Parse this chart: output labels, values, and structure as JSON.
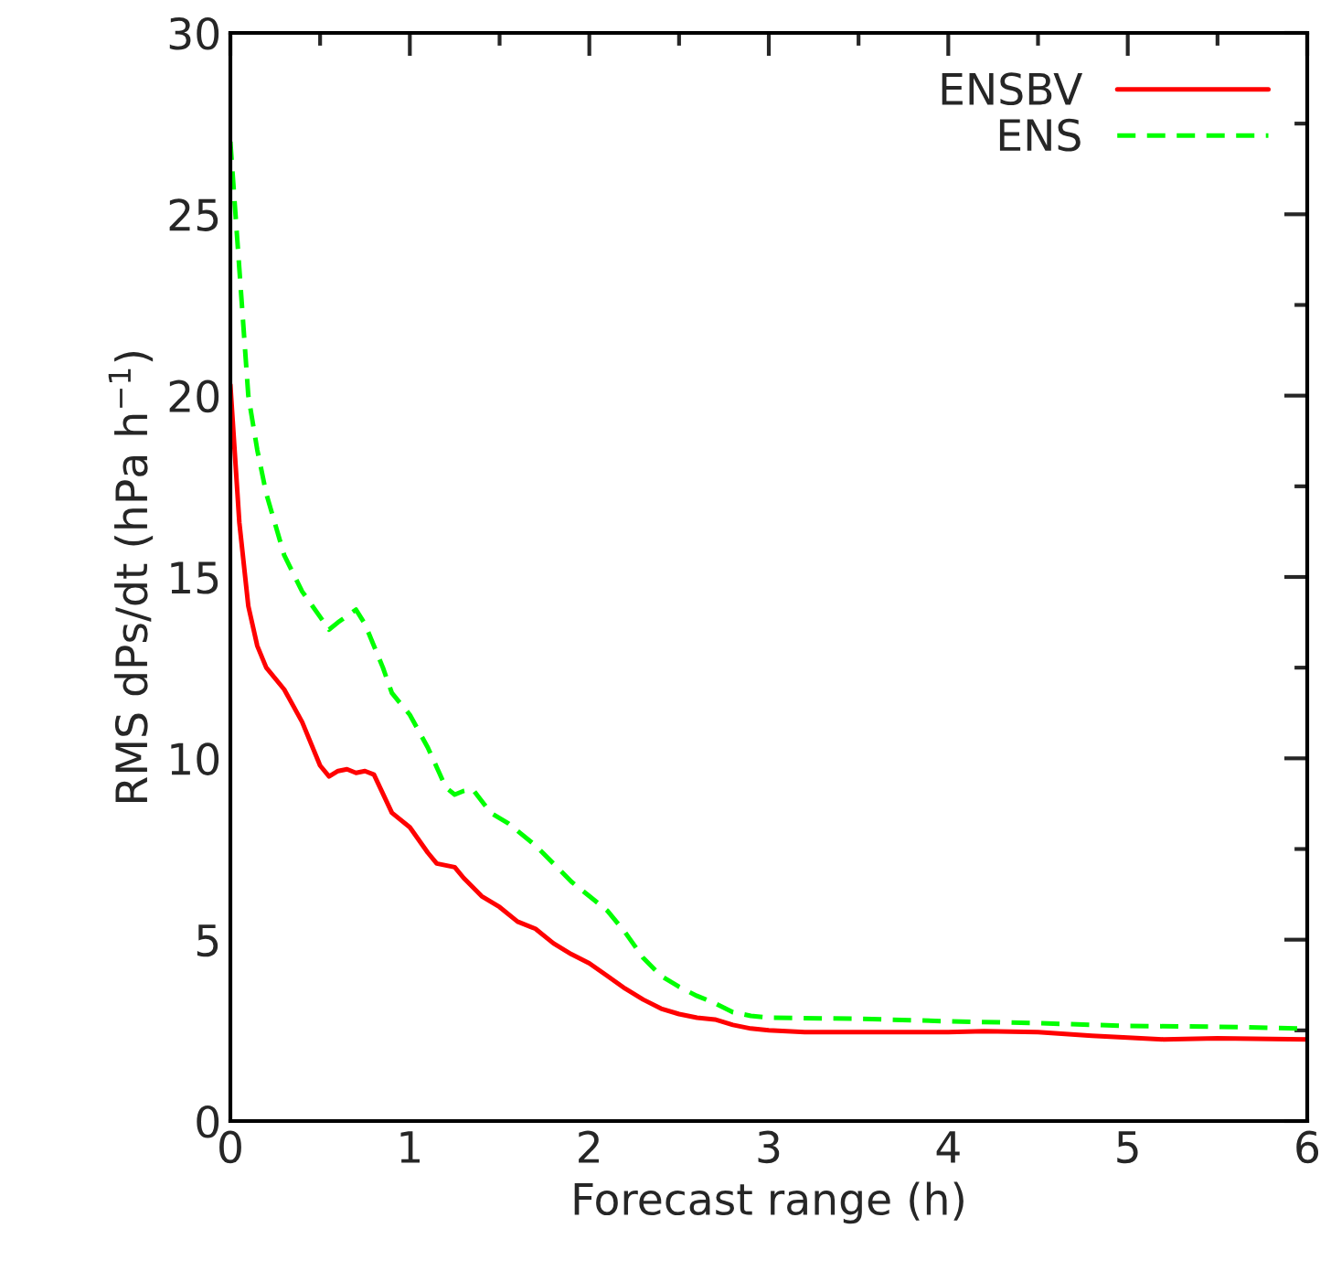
{
  "chart_data": {
    "type": "line",
    "xlabel": "Forecast range (h)",
    "ylabel": "RMS dPs/dt (hPa h$^{−1}$)",
    "xlim": [
      0,
      6
    ],
    "xticks": [
      0,
      1,
      2,
      3,
      4,
      5,
      6
    ],
    "ylim": [
      0,
      30
    ],
    "yticks": [
      0,
      5,
      10,
      15,
      20,
      25,
      30
    ],
    "grid": false,
    "legend": "top right",
    "series": [
      {
        "name": "ENSBV",
        "color": "#ff0000",
        "line_style": "solid",
        "x": [
          0,
          0.05,
          0.1,
          0.15,
          0.2,
          0.3,
          0.4,
          0.5,
          0.55,
          0.6,
          0.65,
          0.7,
          0.75,
          0.8,
          0.9,
          1.0,
          1.1,
          1.15,
          1.25,
          1.3,
          1.4,
          1.5,
          1.6,
          1.7,
          1.8,
          1.9,
          2.0,
          2.1,
          2.2,
          2.3,
          2.4,
          2.5,
          2.6,
          2.7,
          2.8,
          2.9,
          3.0,
          3.2,
          3.5,
          4.0,
          4.2,
          4.5,
          4.8,
          5.0,
          5.2,
          5.5,
          6.0
        ],
        "values": [
          20.3,
          16.5,
          14.2,
          13.1,
          12.5,
          11.9,
          11.0,
          9.8,
          9.5,
          9.65,
          9.7,
          9.6,
          9.65,
          9.55,
          8.5,
          8.1,
          7.4,
          7.1,
          7.0,
          6.7,
          6.2,
          5.9,
          5.5,
          5.3,
          4.9,
          4.6,
          4.35,
          4.0,
          3.65,
          3.35,
          3.1,
          2.95,
          2.85,
          2.8,
          2.65,
          2.55,
          2.5,
          2.45,
          2.45,
          2.45,
          2.48,
          2.45,
          2.35,
          2.3,
          2.25,
          2.28,
          2.25
        ]
      },
      {
        "name": "ENS",
        "color": "#00ff00",
        "line_style": "dashed",
        "x": [
          0,
          0.05,
          0.1,
          0.15,
          0.2,
          0.3,
          0.4,
          0.5,
          0.55,
          0.6,
          0.7,
          0.75,
          0.85,
          0.9,
          1.0,
          1.1,
          1.2,
          1.25,
          1.3,
          1.35,
          1.45,
          1.55,
          1.7,
          1.8,
          1.9,
          2.0,
          2.1,
          2.2,
          2.3,
          2.4,
          2.5,
          2.6,
          2.7,
          2.8,
          2.9,
          3.0,
          3.5,
          4.0,
          4.5,
          5.0,
          5.5,
          6.0
        ],
        "values": [
          27,
          23.5,
          20,
          18.5,
          17.3,
          15.6,
          14.6,
          13.9,
          13.55,
          13.75,
          14.1,
          13.7,
          12.5,
          11.8,
          11.2,
          10.3,
          9.2,
          9.0,
          9.1,
          9.15,
          8.5,
          8.2,
          7.6,
          7.1,
          6.6,
          6.2,
          5.8,
          5.2,
          4.5,
          4.0,
          3.7,
          3.45,
          3.25,
          3.0,
          2.9,
          2.85,
          2.82,
          2.75,
          2.7,
          2.62,
          2.6,
          2.55
        ]
      }
    ]
  }
}
